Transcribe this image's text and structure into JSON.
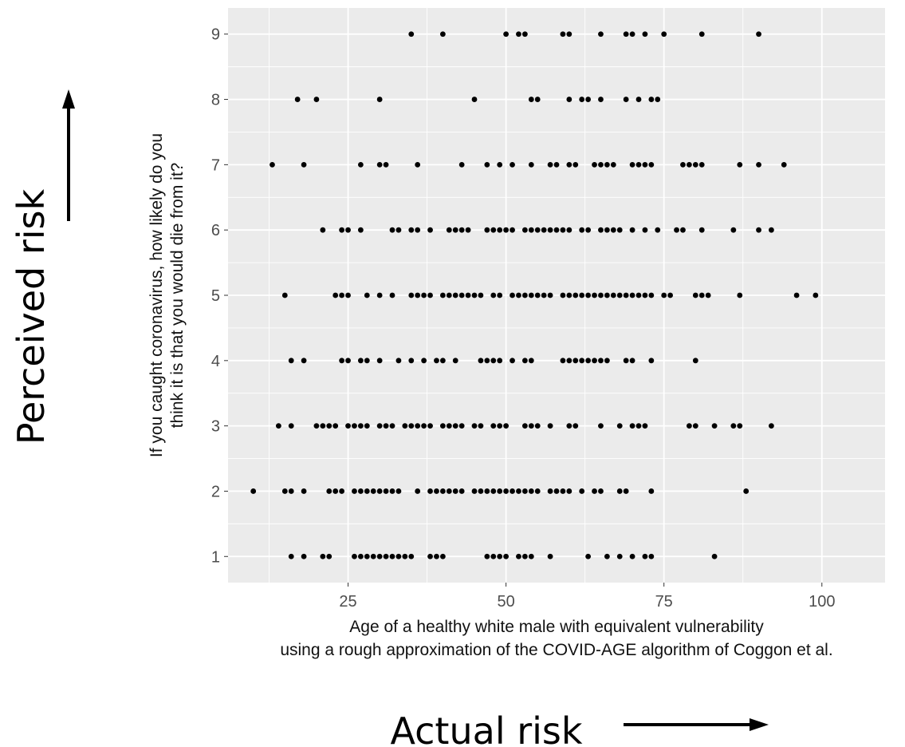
{
  "chart_data": {
    "type": "scatter",
    "xlabel": [
      "Age of a healthy white male with equivalent vulnerability",
      "using a rough approximation of the COVID-AGE algorithm of Coggon et al."
    ],
    "ylabel": [
      "If you caught coronavirus, how likely do you",
      "think it is that you would die from it?"
    ],
    "xlim": [
      6,
      110
    ],
    "ylim": [
      0.6,
      9.4
    ],
    "xticks": [
      25,
      50,
      75,
      100
    ],
    "yticks": [
      1,
      2,
      3,
      4,
      5,
      6,
      7,
      8,
      9
    ],
    "grid": true,
    "background": "#ebebeb",
    "gridColor": "#ffffff",
    "pointColor": "#000000",
    "points": [
      [
        35,
        9
      ],
      [
        40,
        9
      ],
      [
        50,
        9
      ],
      [
        52,
        9
      ],
      [
        53,
        9
      ],
      [
        59,
        9
      ],
      [
        60,
        9
      ],
      [
        65,
        9
      ],
      [
        69,
        9
      ],
      [
        70,
        9
      ],
      [
        72,
        9
      ],
      [
        75,
        9
      ],
      [
        81,
        9
      ],
      [
        90,
        9
      ],
      [
        17,
        8
      ],
      [
        20,
        8
      ],
      [
        30,
        8
      ],
      [
        45,
        8
      ],
      [
        54,
        8
      ],
      [
        55,
        8
      ],
      [
        60,
        8
      ],
      [
        62,
        8
      ],
      [
        63,
        8
      ],
      [
        65,
        8
      ],
      [
        69,
        8
      ],
      [
        71,
        8
      ],
      [
        73,
        8
      ],
      [
        74,
        8
      ],
      [
        13,
        7
      ],
      [
        18,
        7
      ],
      [
        27,
        7
      ],
      [
        30,
        7
      ],
      [
        31,
        7
      ],
      [
        36,
        7
      ],
      [
        43,
        7
      ],
      [
        47,
        7
      ],
      [
        49,
        7
      ],
      [
        51,
        7
      ],
      [
        54,
        7
      ],
      [
        57,
        7
      ],
      [
        58,
        7
      ],
      [
        60,
        7
      ],
      [
        61,
        7
      ],
      [
        64,
        7
      ],
      [
        65,
        7
      ],
      [
        66,
        7
      ],
      [
        67,
        7
      ],
      [
        70,
        7
      ],
      [
        71,
        7
      ],
      [
        72,
        7
      ],
      [
        73,
        7
      ],
      [
        78,
        7
      ],
      [
        79,
        7
      ],
      [
        80,
        7
      ],
      [
        81,
        7
      ],
      [
        87,
        7
      ],
      [
        90,
        7
      ],
      [
        94,
        7
      ],
      [
        21,
        6
      ],
      [
        24,
        6
      ],
      [
        25,
        6
      ],
      [
        27,
        6
      ],
      [
        32,
        6
      ],
      [
        33,
        6
      ],
      [
        35,
        6
      ],
      [
        36,
        6
      ],
      [
        38,
        6
      ],
      [
        41,
        6
      ],
      [
        42,
        6
      ],
      [
        43,
        6
      ],
      [
        44,
        6
      ],
      [
        47,
        6
      ],
      [
        48,
        6
      ],
      [
        49,
        6
      ],
      [
        50,
        6
      ],
      [
        51,
        6
      ],
      [
        53,
        6
      ],
      [
        54,
        6
      ],
      [
        55,
        6
      ],
      [
        56,
        6
      ],
      [
        57,
        6
      ],
      [
        58,
        6
      ],
      [
        59,
        6
      ],
      [
        60,
        6
      ],
      [
        62,
        6
      ],
      [
        63,
        6
      ],
      [
        65,
        6
      ],
      [
        66,
        6
      ],
      [
        67,
        6
      ],
      [
        68,
        6
      ],
      [
        70,
        6
      ],
      [
        72,
        6
      ],
      [
        74,
        6
      ],
      [
        77,
        6
      ],
      [
        78,
        6
      ],
      [
        81,
        6
      ],
      [
        86,
        6
      ],
      [
        90,
        6
      ],
      [
        92,
        6
      ],
      [
        15,
        5
      ],
      [
        23,
        5
      ],
      [
        24,
        5
      ],
      [
        25,
        5
      ],
      [
        28,
        5
      ],
      [
        30,
        5
      ],
      [
        32,
        5
      ],
      [
        35,
        5
      ],
      [
        36,
        5
      ],
      [
        37,
        5
      ],
      [
        38,
        5
      ],
      [
        40,
        5
      ],
      [
        41,
        5
      ],
      [
        42,
        5
      ],
      [
        43,
        5
      ],
      [
        44,
        5
      ],
      [
        45,
        5
      ],
      [
        46,
        5
      ],
      [
        48,
        5
      ],
      [
        49,
        5
      ],
      [
        51,
        5
      ],
      [
        52,
        5
      ],
      [
        53,
        5
      ],
      [
        54,
        5
      ],
      [
        55,
        5
      ],
      [
        56,
        5
      ],
      [
        57,
        5
      ],
      [
        59,
        5
      ],
      [
        60,
        5
      ],
      [
        61,
        5
      ],
      [
        62,
        5
      ],
      [
        63,
        5
      ],
      [
        64,
        5
      ],
      [
        65,
        5
      ],
      [
        66,
        5
      ],
      [
        67,
        5
      ],
      [
        68,
        5
      ],
      [
        69,
        5
      ],
      [
        70,
        5
      ],
      [
        71,
        5
      ],
      [
        72,
        5
      ],
      [
        73,
        5
      ],
      [
        75,
        5
      ],
      [
        76,
        5
      ],
      [
        80,
        5
      ],
      [
        81,
        5
      ],
      [
        82,
        5
      ],
      [
        87,
        5
      ],
      [
        96,
        5
      ],
      [
        99,
        5
      ],
      [
        16,
        4
      ],
      [
        18,
        4
      ],
      [
        24,
        4
      ],
      [
        25,
        4
      ],
      [
        27,
        4
      ],
      [
        28,
        4
      ],
      [
        30,
        4
      ],
      [
        33,
        4
      ],
      [
        35,
        4
      ],
      [
        37,
        4
      ],
      [
        39,
        4
      ],
      [
        40,
        4
      ],
      [
        42,
        4
      ],
      [
        46,
        4
      ],
      [
        47,
        4
      ],
      [
        48,
        4
      ],
      [
        49,
        4
      ],
      [
        51,
        4
      ],
      [
        53,
        4
      ],
      [
        54,
        4
      ],
      [
        59,
        4
      ],
      [
        60,
        4
      ],
      [
        61,
        4
      ],
      [
        62,
        4
      ],
      [
        63,
        4
      ],
      [
        64,
        4
      ],
      [
        65,
        4
      ],
      [
        66,
        4
      ],
      [
        69,
        4
      ],
      [
        70,
        4
      ],
      [
        73,
        4
      ],
      [
        80,
        4
      ],
      [
        14,
        3
      ],
      [
        16,
        3
      ],
      [
        20,
        3
      ],
      [
        21,
        3
      ],
      [
        22,
        3
      ],
      [
        23,
        3
      ],
      [
        25,
        3
      ],
      [
        26,
        3
      ],
      [
        27,
        3
      ],
      [
        28,
        3
      ],
      [
        30,
        3
      ],
      [
        31,
        3
      ],
      [
        32,
        3
      ],
      [
        34,
        3
      ],
      [
        35,
        3
      ],
      [
        36,
        3
      ],
      [
        37,
        3
      ],
      [
        38,
        3
      ],
      [
        40,
        3
      ],
      [
        41,
        3
      ],
      [
        42,
        3
      ],
      [
        43,
        3
      ],
      [
        45,
        3
      ],
      [
        46,
        3
      ],
      [
        48,
        3
      ],
      [
        49,
        3
      ],
      [
        50,
        3
      ],
      [
        53,
        3
      ],
      [
        54,
        3
      ],
      [
        55,
        3
      ],
      [
        57,
        3
      ],
      [
        60,
        3
      ],
      [
        61,
        3
      ],
      [
        65,
        3
      ],
      [
        68,
        3
      ],
      [
        70,
        3
      ],
      [
        71,
        3
      ],
      [
        72,
        3
      ],
      [
        79,
        3
      ],
      [
        80,
        3
      ],
      [
        83,
        3
      ],
      [
        86,
        3
      ],
      [
        87,
        3
      ],
      [
        92,
        3
      ],
      [
        10,
        2
      ],
      [
        15,
        2
      ],
      [
        16,
        2
      ],
      [
        18,
        2
      ],
      [
        22,
        2
      ],
      [
        23,
        2
      ],
      [
        24,
        2
      ],
      [
        26,
        2
      ],
      [
        27,
        2
      ],
      [
        28,
        2
      ],
      [
        29,
        2
      ],
      [
        30,
        2
      ],
      [
        31,
        2
      ],
      [
        32,
        2
      ],
      [
        33,
        2
      ],
      [
        36,
        2
      ],
      [
        38,
        2
      ],
      [
        39,
        2
      ],
      [
        40,
        2
      ],
      [
        41,
        2
      ],
      [
        42,
        2
      ],
      [
        43,
        2
      ],
      [
        45,
        2
      ],
      [
        46,
        2
      ],
      [
        47,
        2
      ],
      [
        48,
        2
      ],
      [
        49,
        2
      ],
      [
        50,
        2
      ],
      [
        51,
        2
      ],
      [
        52,
        2
      ],
      [
        53,
        2
      ],
      [
        54,
        2
      ],
      [
        55,
        2
      ],
      [
        57,
        2
      ],
      [
        58,
        2
      ],
      [
        59,
        2
      ],
      [
        60,
        2
      ],
      [
        62,
        2
      ],
      [
        64,
        2
      ],
      [
        65,
        2
      ],
      [
        68,
        2
      ],
      [
        69,
        2
      ],
      [
        73,
        2
      ],
      [
        88,
        2
      ],
      [
        16,
        1
      ],
      [
        18,
        1
      ],
      [
        21,
        1
      ],
      [
        22,
        1
      ],
      [
        26,
        1
      ],
      [
        27,
        1
      ],
      [
        28,
        1
      ],
      [
        29,
        1
      ],
      [
        30,
        1
      ],
      [
        31,
        1
      ],
      [
        32,
        1
      ],
      [
        33,
        1
      ],
      [
        34,
        1
      ],
      [
        35,
        1
      ],
      [
        38,
        1
      ],
      [
        39,
        1
      ],
      [
        40,
        1
      ],
      [
        47,
        1
      ],
      [
        48,
        1
      ],
      [
        49,
        1
      ],
      [
        50,
        1
      ],
      [
        52,
        1
      ],
      [
        53,
        1
      ],
      [
        54,
        1
      ],
      [
        57,
        1
      ],
      [
        63,
        1
      ],
      [
        66,
        1
      ],
      [
        68,
        1
      ],
      [
        70,
        1
      ],
      [
        72,
        1
      ],
      [
        73,
        1
      ],
      [
        83,
        1
      ]
    ]
  },
  "annotations": {
    "y_big_label": "Perceived risk",
    "x_big_label": "Actual risk"
  }
}
